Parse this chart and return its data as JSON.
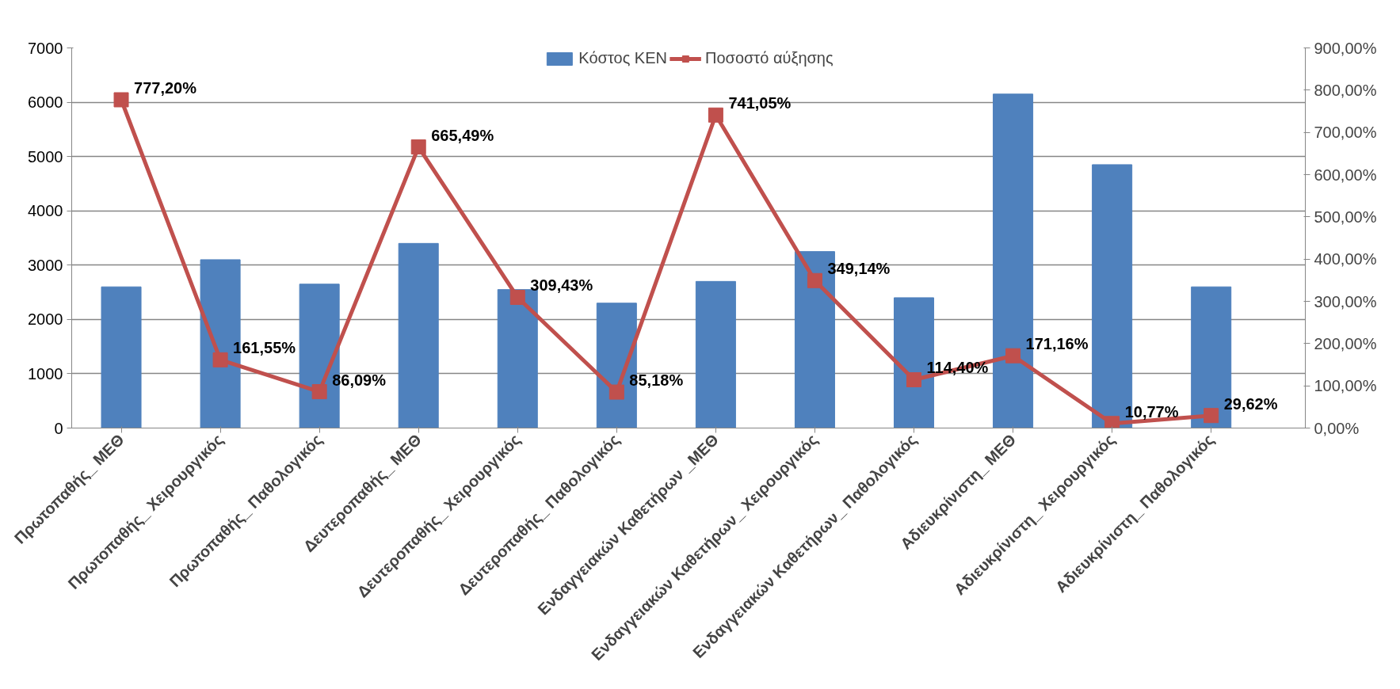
{
  "chart_data": {
    "type": "bar",
    "categories": [
      "Πρωτοπαθής_ ΜΕΘ",
      "Πρωτοπαθής_ Χειρουργικός",
      "Πρωτοπαθής_ Παθολογικός",
      "Δευτεροπαθής_ ΜΕΘ",
      "Δευτεροπαθής_ Χειρουργικός",
      "Δευτεροπαθής_ Παθολογικός",
      "Ενδαγγειακών Καθετήρων _ΜΕΘ",
      "Ενδαγγειακών Καθετήρων_ Χειρουργικός",
      "Ενδαγγειακών Καθετήρων_ Παθολογικός",
      "Αδιευκρίνιστη_ ΜΕΘ",
      "Αδιευκρίνιστη_ Χειρουργικός",
      "Αδιευκρίνιστη_ Παθολογικός"
    ],
    "series": [
      {
        "name": "Κόστος ΚΕΝ",
        "color": "#4f81bd",
        "values": [
          2600,
          3100,
          2650,
          3400,
          2550,
          2300,
          2700,
          3250,
          2400,
          6150,
          4850,
          2600
        ]
      },
      {
        "name": "Ποσοστό αύξησης",
        "type": "line",
        "axis": "y2",
        "color": "#c0504d",
        "marker": "square",
        "values": [
          777.2,
          161.55,
          86.09,
          665.49,
          309.43,
          85.18,
          741.05,
          349.14,
          114.4,
          171.16,
          10.77,
          29.62
        ],
        "value_labels": [
          "777,20%",
          "161,55%",
          "86,09%",
          "665,49%",
          "309,43%",
          "85,18%",
          "741,05%",
          "349,14%",
          "114,40%",
          "171,16%",
          "10,77%",
          "29,62%"
        ]
      }
    ],
    "ylim": [
      0,
      7000
    ],
    "yticks": [
      0,
      1000,
      2000,
      3000,
      4000,
      5000,
      6000,
      7000
    ],
    "y2lim": [
      0,
      900
    ],
    "y2ticks": [
      {
        "value": 0,
        "label": "0,00%"
      },
      {
        "value": 100,
        "label": "100,00%"
      },
      {
        "value": 200,
        "label": "200,00%"
      },
      {
        "value": 300,
        "label": "300,00%"
      },
      {
        "value": 400,
        "label": "400,00%"
      },
      {
        "value": 500,
        "label": "500,00%"
      },
      {
        "value": 600,
        "label": "600,00%"
      },
      {
        "value": 700,
        "label": "700,00%"
      },
      {
        "value": 800,
        "label": "800,00%"
      },
      {
        "value": 900,
        "label": "900,00%"
      }
    ],
    "grid": "y",
    "legend": "top"
  }
}
